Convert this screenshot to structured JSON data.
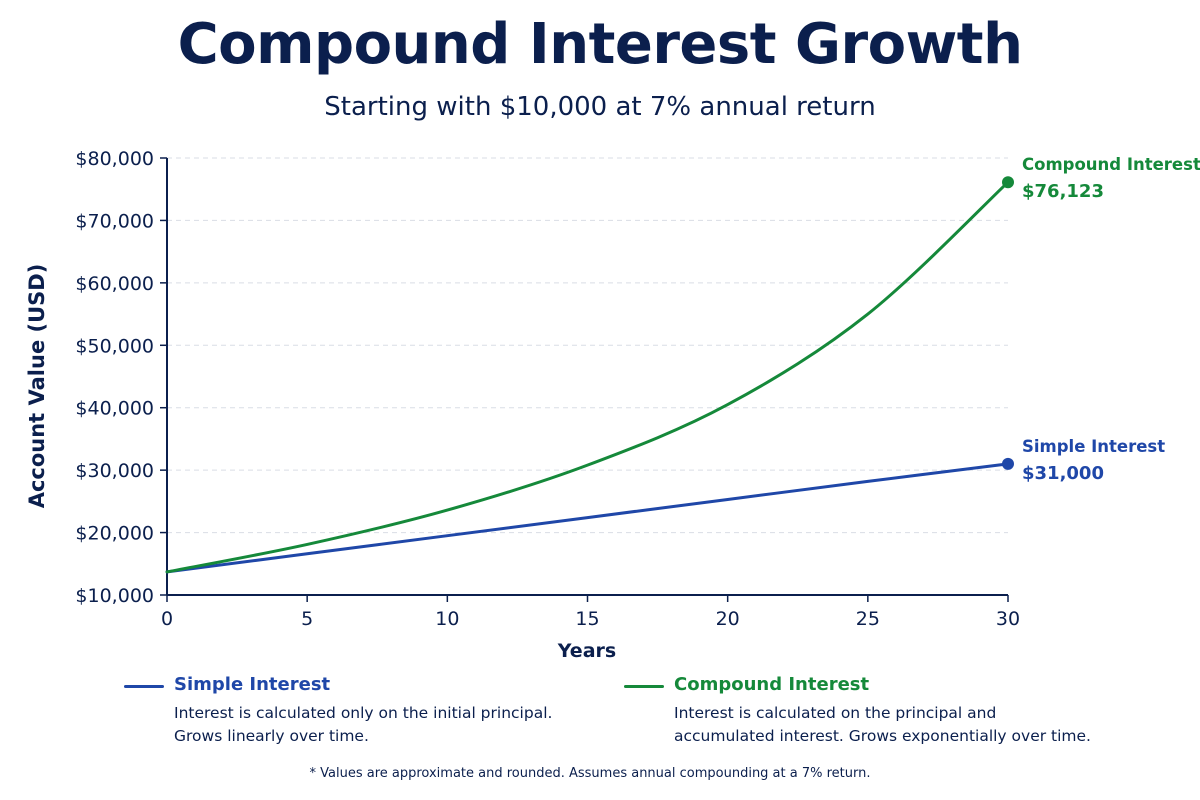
{
  "chart_data": {
    "type": "line",
    "title": "Compound Interest Growth",
    "subtitle": "Starting with $10,000 at 7% annual return",
    "xlabel": "Years",
    "ylabel": "Account Value (USD)",
    "xlim": [
      0,
      30
    ],
    "ylim": [
      10000,
      80000
    ],
    "x_ticks": [
      0,
      5,
      10,
      15,
      20,
      25,
      30
    ],
    "x_tick_labels": [
      "0",
      "5",
      "10",
      "15",
      "20",
      "25",
      "30"
    ],
    "y_ticks": [
      10000,
      20000,
      30000,
      40000,
      50000,
      60000,
      70000,
      80000
    ],
    "y_tick_labels": [
      "$10,000",
      "$20,000",
      "$30,000",
      "$40,000",
      "$50,000",
      "$60,000",
      "$70,000",
      "$80,000"
    ],
    "grid": true,
    "series": [
      {
        "name": "Simple Interest",
        "color": "#1f47a8",
        "x": [
          0,
          5,
          10,
          15,
          20,
          25,
          30
        ],
        "values": [
          13700,
          16600,
          19500,
          22400,
          25300,
          28200,
          31000
        ],
        "end_label": "$31,000"
      },
      {
        "name": "Compound Interest",
        "color": "#15893a",
        "x": [
          0,
          5,
          10,
          15,
          20,
          25,
          30
        ],
        "values": [
          13700,
          18100,
          23600,
          30800,
          40500,
          55000,
          76123
        ],
        "end_label": "$76,123"
      }
    ],
    "legend": {
      "placement": "bottom",
      "items": [
        {
          "name": "Simple Interest",
          "color": "#1f47a8",
          "description_lines": [
            "Interest is calculated only on the initial principal.",
            "Grows linearly over time."
          ]
        },
        {
          "name": "Compound Interest",
          "color": "#15893a",
          "description_lines": [
            "Interest is calculated on the principal and",
            "accumulated interest. Grows exponentially over time."
          ]
        }
      ]
    },
    "footnote": "* Values are approximate and rounded. Assumes annual compounding at a 7% return."
  }
}
